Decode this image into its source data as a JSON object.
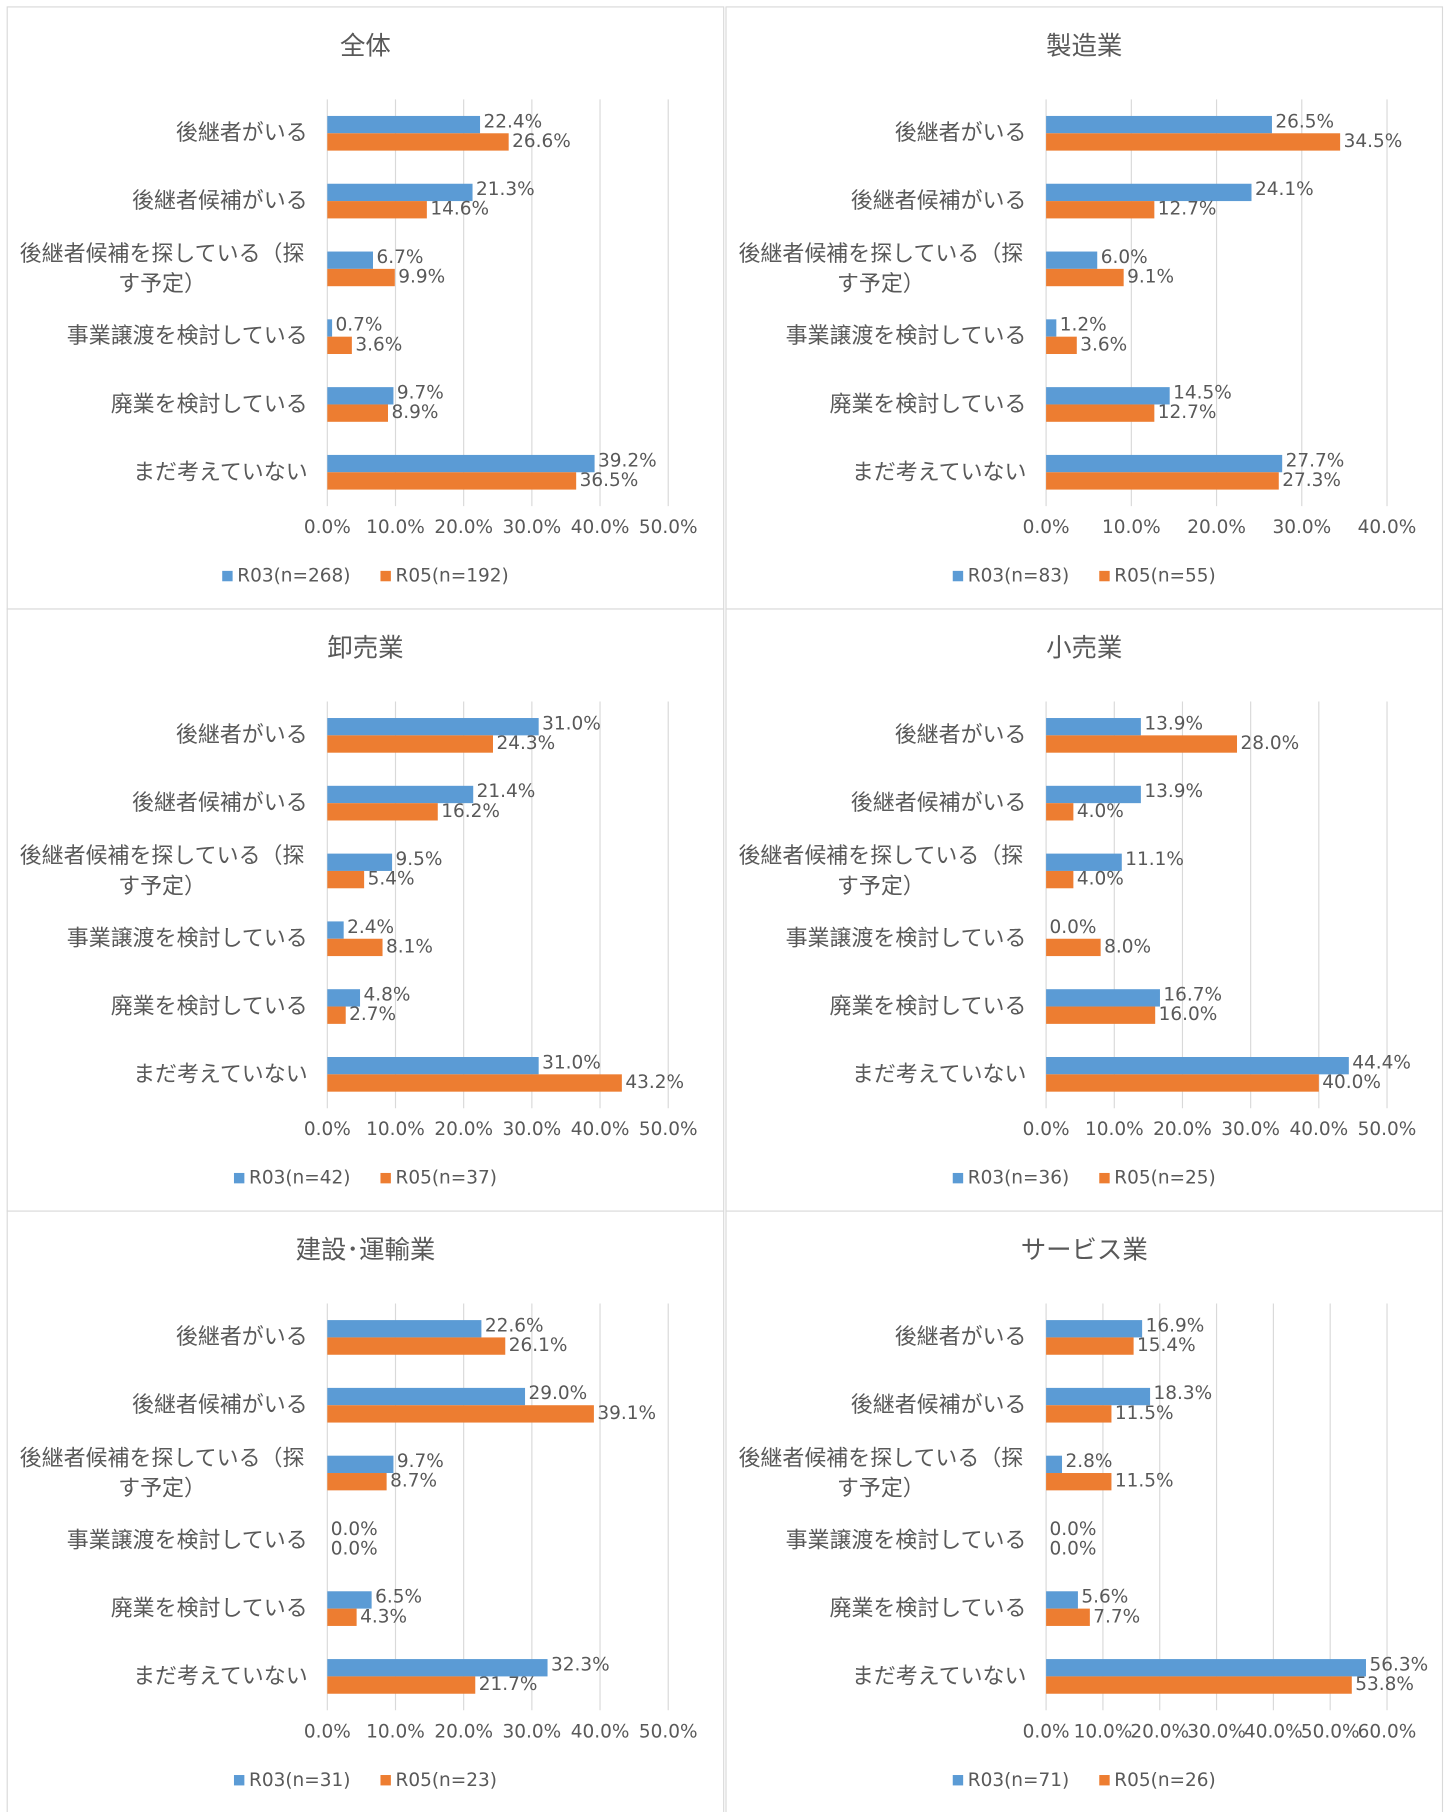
{
  "chart_data": [
    {
      "type": "bar",
      "orientation": "horizontal",
      "title": "全体",
      "categories": [
        "後継者がいる",
        "後継者候補がいる",
        "後継者候補を探している（探す予定）",
        "事業譲渡を検討している",
        "廃業を検討している",
        "まだ考えていない"
      ],
      "series": [
        {
          "name": "R03(n=268)",
          "color": "#5b9bd5",
          "values": [
            22.4,
            21.3,
            6.7,
            0.7,
            9.7,
            39.2
          ],
          "value_labels": [
            "22.4%",
            "21.3%",
            "6.7%",
            "0.7%",
            "9.7%",
            "39.2%"
          ]
        },
        {
          "name": "R05(n=192)",
          "color": "#ed7d31",
          "values": [
            26.6,
            14.6,
            9.9,
            3.6,
            8.9,
            36.5
          ],
          "value_labels": [
            "26.6%",
            "14.6%",
            "9.9%",
            "3.6%",
            "8.9%",
            "36.5%"
          ]
        }
      ],
      "xlim": [
        0,
        50
      ],
      "xticks": [
        {
          "value": 0,
          "label": "0.0%"
        },
        {
          "value": 10,
          "label": "10.0%"
        },
        {
          "value": 20,
          "label": "20.0%"
        },
        {
          "value": 30,
          "label": "30.0%"
        },
        {
          "value": 40,
          "label": "40.0%"
        },
        {
          "value": 50,
          "label": "50.0%"
        }
      ],
      "grid": true
    },
    {
      "type": "bar",
      "orientation": "horizontal",
      "title": "製造業",
      "categories": [
        "後継者がいる",
        "後継者候補がいる",
        "後継者候補を探している（探す予定）",
        "事業譲渡を検討している",
        "廃業を検討している",
        "まだ考えていない"
      ],
      "series": [
        {
          "name": "R03(n=83)",
          "color": "#5b9bd5",
          "values": [
            26.5,
            24.1,
            6.0,
            1.2,
            14.5,
            27.7
          ],
          "value_labels": [
            "26.5%",
            "24.1%",
            "6.0%",
            "1.2%",
            "14.5%",
            "27.7%"
          ]
        },
        {
          "name": "R05(n=55)",
          "color": "#ed7d31",
          "values": [
            34.5,
            12.7,
            9.1,
            3.6,
            12.7,
            27.3
          ],
          "value_labels": [
            "34.5%",
            "12.7%",
            "9.1%",
            "3.6%",
            "12.7%",
            "27.3%"
          ]
        }
      ],
      "xlim": [
        0,
        40
      ],
      "xticks": [
        {
          "value": 0,
          "label": "0.0%"
        },
        {
          "value": 10,
          "label": "10.0%"
        },
        {
          "value": 20,
          "label": "20.0%"
        },
        {
          "value": 30,
          "label": "30.0%"
        },
        {
          "value": 40,
          "label": "40.0%"
        }
      ],
      "grid": true
    },
    {
      "type": "bar",
      "orientation": "horizontal",
      "title": "卸売業",
      "categories": [
        "後継者がいる",
        "後継者候補がいる",
        "後継者候補を探している（探す予定）",
        "事業譲渡を検討している",
        "廃業を検討している",
        "まだ考えていない"
      ],
      "series": [
        {
          "name": "R03(n=42)",
          "color": "#5b9bd5",
          "values": [
            31.0,
            21.4,
            9.5,
            2.4,
            4.8,
            31.0
          ],
          "value_labels": [
            "31.0%",
            "21.4%",
            "9.5%",
            "2.4%",
            "4.8%",
            "31.0%"
          ]
        },
        {
          "name": "R05(n=37)",
          "color": "#ed7d31",
          "values": [
            24.3,
            16.2,
            5.4,
            8.1,
            2.7,
            43.2
          ],
          "value_labels": [
            "24.3%",
            "16.2%",
            "5.4%",
            "8.1%",
            "2.7%",
            "43.2%"
          ]
        }
      ],
      "xlim": [
        0,
        50
      ],
      "xticks": [
        {
          "value": 0,
          "label": "0.0%"
        },
        {
          "value": 10,
          "label": "10.0%"
        },
        {
          "value": 20,
          "label": "20.0%"
        },
        {
          "value": 30,
          "label": "30.0%"
        },
        {
          "value": 40,
          "label": "40.0%"
        },
        {
          "value": 50,
          "label": "50.0%"
        }
      ],
      "grid": true
    },
    {
      "type": "bar",
      "orientation": "horizontal",
      "title": "小売業",
      "categories": [
        "後継者がいる",
        "後継者候補がいる",
        "後継者候補を探している（探す予定）",
        "事業譲渡を検討している",
        "廃業を検討している",
        "まだ考えていない"
      ],
      "series": [
        {
          "name": "R03(n=36)",
          "color": "#5b9bd5",
          "values": [
            13.9,
            13.9,
            11.1,
            0.0,
            16.7,
            44.4
          ],
          "value_labels": [
            "13.9%",
            "13.9%",
            "11.1%",
            "0.0%",
            "16.7%",
            "44.4%"
          ]
        },
        {
          "name": "R05(n=25)",
          "color": "#ed7d31",
          "values": [
            28.0,
            4.0,
            4.0,
            8.0,
            16.0,
            40.0
          ],
          "value_labels": [
            "28.0%",
            "4.0%",
            "4.0%",
            "8.0%",
            "16.0%",
            "40.0%"
          ]
        }
      ],
      "xlim": [
        0,
        50
      ],
      "xticks": [
        {
          "value": 0,
          "label": "0.0%"
        },
        {
          "value": 10,
          "label": "10.0%"
        },
        {
          "value": 20,
          "label": "20.0%"
        },
        {
          "value": 30,
          "label": "30.0%"
        },
        {
          "value": 40,
          "label": "40.0%"
        },
        {
          "value": 50,
          "label": "50.0%"
        }
      ],
      "grid": true
    },
    {
      "type": "bar",
      "orientation": "horizontal",
      "title": "建設･運輸業",
      "categories": [
        "後継者がいる",
        "後継者候補がいる",
        "後継者候補を探している（探す予定）",
        "事業譲渡を検討している",
        "廃業を検討している",
        "まだ考えていない"
      ],
      "series": [
        {
          "name": "R03(n=31)",
          "color": "#5b9bd5",
          "values": [
            22.6,
            29.0,
            9.7,
            0.0,
            6.5,
            32.3
          ],
          "value_labels": [
            "22.6%",
            "29.0%",
            "9.7%",
            "0.0%",
            "6.5%",
            "32.3%"
          ]
        },
        {
          "name": "R05(n=23)",
          "color": "#ed7d31",
          "values": [
            26.1,
            39.1,
            8.7,
            0.0,
            4.3,
            21.7
          ],
          "value_labels": [
            "26.1%",
            "39.1%",
            "8.7%",
            "0.0%",
            "4.3%",
            "21.7%"
          ]
        }
      ],
      "xlim": [
        0,
        50
      ],
      "xticks": [
        {
          "value": 0,
          "label": "0.0%"
        },
        {
          "value": 10,
          "label": "10.0%"
        },
        {
          "value": 20,
          "label": "20.0%"
        },
        {
          "value": 30,
          "label": "30.0%"
        },
        {
          "value": 40,
          "label": "40.0%"
        },
        {
          "value": 50,
          "label": "50.0%"
        }
      ],
      "grid": true
    },
    {
      "type": "bar",
      "orientation": "horizontal",
      "title": "サービス業",
      "categories": [
        "後継者がいる",
        "後継者候補がいる",
        "後継者候補を探している（探す予定）",
        "事業譲渡を検討している",
        "廃業を検討している",
        "まだ考えていない"
      ],
      "series": [
        {
          "name": "R03(n=71)",
          "color": "#5b9bd5",
          "values": [
            16.9,
            18.3,
            2.8,
            0.0,
            5.6,
            56.3
          ],
          "value_labels": [
            "16.9%",
            "18.3%",
            "2.8%",
            "0.0%",
            "5.6%",
            "56.3%"
          ]
        },
        {
          "name": "R05(n=26)",
          "color": "#ed7d31",
          "values": [
            15.4,
            11.5,
            11.5,
            0.0,
            7.7,
            53.8
          ],
          "value_labels": [
            "15.4%",
            "11.5%",
            "11.5%",
            "0.0%",
            "7.7%",
            "53.8%"
          ]
        }
      ],
      "xlim": [
        0,
        60
      ],
      "xticks": [
        {
          "value": 0,
          "label": "0.0%"
        },
        {
          "value": 10,
          "label": "10.0%"
        },
        {
          "value": 20,
          "label": "20.0%"
        },
        {
          "value": 30,
          "label": "30.0%"
        },
        {
          "value": 40,
          "label": "40.0%"
        },
        {
          "value": 50,
          "label": "50.0%"
        },
        {
          "value": 60,
          "label": "60.0%"
        }
      ],
      "grid": true
    }
  ]
}
